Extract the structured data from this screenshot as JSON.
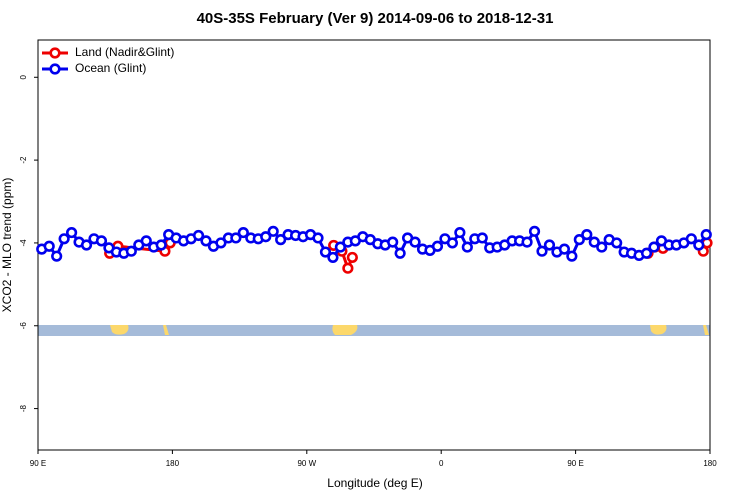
{
  "chart_data": {
    "type": "line",
    "title": "40S-35S February (Ver 9)   2014-09-06 to 2018-12-31",
    "x_label": "Longitude (deg E)",
    "y_label": "XCO2 - MLO trend (ppm)",
    "xlim": [
      90,
      540
    ],
    "ylim": [
      -9,
      0.9
    ],
    "xticks": [
      {
        "value": 90,
        "label": "90 E"
      },
      180,
      {
        "value": 270,
        "label": "90 W"
      },
      {
        "value": 360,
        "label": "0"
      },
      {
        "value": 450,
        "label": "90 E"
      },
      {
        "value": 540,
        "label": "180"
      }
    ],
    "yticks": [
      0,
      -2,
      -4,
      -6,
      -8
    ],
    "legend": "top-left",
    "series": [
      {
        "name": "Land (Nadir&Glint)",
        "color": "#ee0000",
        "x": [
          138,
          143.5,
          175,
          178.5,
          230,
          288,
          293.5,
          297.5,
          300.5,
          400,
          498.5,
          503,
          508.5,
          520,
          535.5,
          538
        ],
        "values": [
          -4.25,
          -4.08,
          -4.2,
          -4.0,
          null,
          -4.06,
          -4.2,
          -4.61,
          -4.35,
          null,
          -4.25,
          -4.1,
          -4.13,
          null,
          -4.2,
          -4.0
        ]
      },
      {
        "name": "Ocean (Glint)",
        "color": "#0000ee",
        "x": [
          92.5,
          97.5,
          102.5,
          107.5,
          112.5,
          117.5,
          122.5,
          127.5,
          132.5,
          137.5,
          142.5,
          147.5,
          152.5,
          157.5,
          162.5,
          167.5,
          172.5,
          177.5,
          182.5,
          187.5,
          192.5,
          197.5,
          202.5,
          207.5,
          212.5,
          217.5,
          222.5,
          227.5,
          232.5,
          237.5,
          242.5,
          247.5,
          252.5,
          257.5,
          262.5,
          267.5,
          272.5,
          277.5,
          282.5,
          287.5,
          292.5,
          297.5,
          302.5,
          307.5,
          312.5,
          317.5,
          322.5,
          327.5,
          332.5,
          337.5,
          342.5,
          347.5,
          352.5,
          357.5,
          362.5,
          367.5,
          372.5,
          377.5,
          382.5,
          387.5,
          392.5,
          397.5,
          402.5,
          407.5,
          412.5,
          417.5,
          422.5,
          427.5,
          432.5,
          437.5,
          442.5,
          447.5,
          452.5,
          457.5,
          462.5,
          467.5,
          472.5,
          477.5,
          482.5,
          487.5,
          492.5,
          497.5,
          502.5,
          507.5,
          512.5,
          517.5,
          522.5,
          527.5,
          532.5,
          537.5
        ],
        "values": [
          -4.15,
          -4.08,
          -4.32,
          -3.9,
          -3.75,
          -3.98,
          -4.05,
          -3.9,
          -3.95,
          -4.12,
          -4.22,
          -4.25,
          -4.2,
          -4.05,
          -3.95,
          -4.1,
          -4.05,
          -3.8,
          -3.88,
          -3.95,
          -3.9,
          -3.82,
          -3.95,
          -4.08,
          -4.0,
          -3.88,
          -3.88,
          -3.75,
          -3.88,
          -3.9,
          -3.85,
          -3.72,
          -3.92,
          -3.8,
          -3.82,
          -3.85,
          -3.8,
          -3.88,
          -4.22,
          -4.35,
          -4.1,
          -3.98,
          -3.95,
          -3.85,
          -3.92,
          -4.02,
          -4.05,
          -3.98,
          -4.25,
          -3.88,
          -3.98,
          -4.15,
          -4.18,
          -4.08,
          -3.9,
          -4.0,
          -3.75,
          -4.1,
          -3.9,
          -3.88,
          -4.12,
          -4.1,
          -4.05,
          -3.95,
          -3.95,
          -3.98,
          -3.72,
          -4.2,
          -4.05,
          -4.22,
          -4.15,
          -4.32,
          -3.92,
          -3.8,
          -3.98,
          -4.1,
          -3.92,
          -4.0,
          -4.22,
          -4.25,
          -4.3,
          -4.25,
          -4.1,
          -3.95,
          -4.05,
          -4.05,
          -4.0,
          -3.9,
          -4.05,
          -3.8
        ]
      }
    ]
  }
}
